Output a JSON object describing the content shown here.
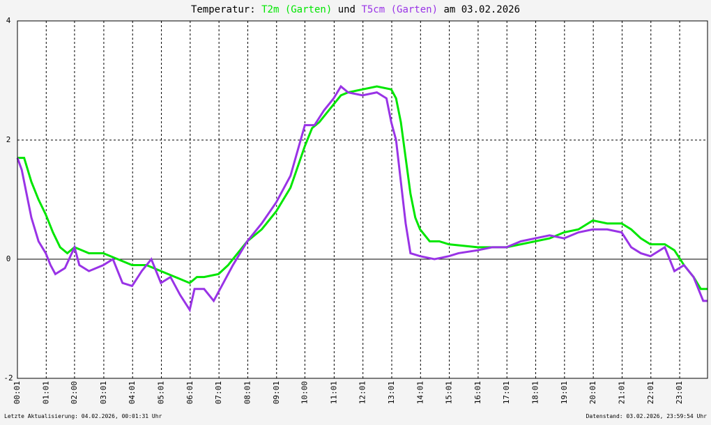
{
  "chart_data": {
    "type": "line",
    "title_prefix": "Temperatur:",
    "title_join": "und",
    "title_suffix": "am 03.02.2026",
    "ylim": [
      -2,
      4
    ],
    "yticks": [
      -2,
      0,
      2,
      4
    ],
    "xlim": [
      "00:01",
      "23:59"
    ],
    "xticks": [
      "00:01",
      "01:01",
      "02:00",
      "03:01",
      "04:01",
      "05:01",
      "06:01",
      "07:01",
      "08:01",
      "09:01",
      "10:00",
      "11:01",
      "12:01",
      "13:01",
      "14:01",
      "15:01",
      "16:01",
      "17:01",
      "18:01",
      "19:01",
      "20:01",
      "21:01",
      "22:01",
      "23:01"
    ],
    "grid": true,
    "zero_line": true,
    "series": [
      {
        "name": "T2m (Garten)",
        "color": "#00e600",
        "x": [
          "00:01",
          "00:15",
          "00:30",
          "00:45",
          "01:00",
          "01:15",
          "01:30",
          "01:45",
          "02:00",
          "02:15",
          "02:30",
          "03:00",
          "03:30",
          "04:00",
          "04:30",
          "05:00",
          "05:30",
          "06:00",
          "06:15",
          "06:30",
          "07:00",
          "07:20",
          "07:40",
          "08:00",
          "08:30",
          "09:00",
          "09:30",
          "10:00",
          "10:15",
          "10:30",
          "11:00",
          "11:15",
          "11:30",
          "12:00",
          "12:30",
          "13:00",
          "13:10",
          "13:20",
          "13:30",
          "13:40",
          "13:50",
          "14:00",
          "14:20",
          "14:40",
          "15:00",
          "16:00",
          "17:00",
          "17:30",
          "18:00",
          "18:30",
          "19:00",
          "19:30",
          "20:00",
          "20:30",
          "21:00",
          "21:20",
          "21:40",
          "22:00",
          "22:30",
          "22:50",
          "23:10",
          "23:30",
          "23:45",
          "23:59"
        ],
        "values": [
          1.7,
          1.7,
          1.3,
          1.0,
          0.75,
          0.45,
          0.2,
          0.1,
          0.2,
          0.15,
          0.1,
          0.1,
          0.0,
          -0.1,
          -0.1,
          -0.2,
          -0.3,
          -0.4,
          -0.3,
          -0.3,
          -0.25,
          -0.1,
          0.1,
          0.3,
          0.5,
          0.8,
          1.2,
          1.9,
          2.2,
          2.3,
          2.6,
          2.75,
          2.8,
          2.85,
          2.9,
          2.85,
          2.7,
          2.3,
          1.7,
          1.1,
          0.7,
          0.5,
          0.3,
          0.3,
          0.25,
          0.2,
          0.2,
          0.25,
          0.3,
          0.35,
          0.45,
          0.5,
          0.65,
          0.6,
          0.6,
          0.5,
          0.35,
          0.25,
          0.25,
          0.15,
          -0.1,
          -0.3,
          -0.5,
          -0.5
        ]
      },
      {
        "name": "T5cm (Garten)",
        "color": "#9933e6",
        "x": [
          "00:01",
          "00:10",
          "00:20",
          "00:30",
          "00:45",
          "01:00",
          "01:10",
          "01:20",
          "01:40",
          "02:00",
          "02:10",
          "02:30",
          "03:00",
          "03:20",
          "03:40",
          "04:00",
          "04:20",
          "04:40",
          "05:00",
          "05:20",
          "05:40",
          "06:00",
          "06:10",
          "06:30",
          "06:50",
          "07:10",
          "07:30",
          "08:00",
          "08:30",
          "09:00",
          "09:30",
          "10:00",
          "10:20",
          "10:40",
          "11:00",
          "11:15",
          "11:30",
          "12:00",
          "12:30",
          "12:50",
          "13:00",
          "13:10",
          "13:20",
          "13:30",
          "13:40",
          "14:00",
          "14:30",
          "15:00",
          "15:20",
          "16:00",
          "16:30",
          "17:00",
          "17:30",
          "18:00",
          "18:30",
          "19:00",
          "19:30",
          "20:00",
          "20:30",
          "21:00",
          "21:20",
          "21:40",
          "22:00",
          "22:30",
          "22:50",
          "23:10",
          "23:30",
          "23:50",
          "23:59"
        ],
        "values": [
          1.7,
          1.5,
          1.1,
          0.7,
          0.3,
          0.1,
          -0.1,
          -0.25,
          -0.15,
          0.2,
          -0.1,
          -0.2,
          -0.1,
          0.0,
          -0.4,
          -0.45,
          -0.2,
          0.0,
          -0.4,
          -0.3,
          -0.6,
          -0.85,
          -0.5,
          -0.5,
          -0.7,
          -0.4,
          -0.1,
          0.3,
          0.6,
          0.95,
          1.4,
          2.25,
          2.25,
          2.5,
          2.7,
          2.9,
          2.8,
          2.75,
          2.8,
          2.7,
          2.3,
          2.0,
          1.3,
          0.6,
          0.1,
          0.05,
          0.0,
          0.05,
          0.1,
          0.15,
          0.2,
          0.2,
          0.3,
          0.35,
          0.4,
          0.35,
          0.45,
          0.5,
          0.5,
          0.45,
          0.2,
          0.1,
          0.05,
          0.2,
          -0.2,
          -0.1,
          -0.3,
          -0.7,
          -0.7
        ]
      }
    ],
    "footer_left": "Letzte Aktualisierung: 04.02.2026, 00:01:31 Uhr",
    "footer_right": "Datenstand: 03.02.2026, 23:59:54 Uhr"
  }
}
